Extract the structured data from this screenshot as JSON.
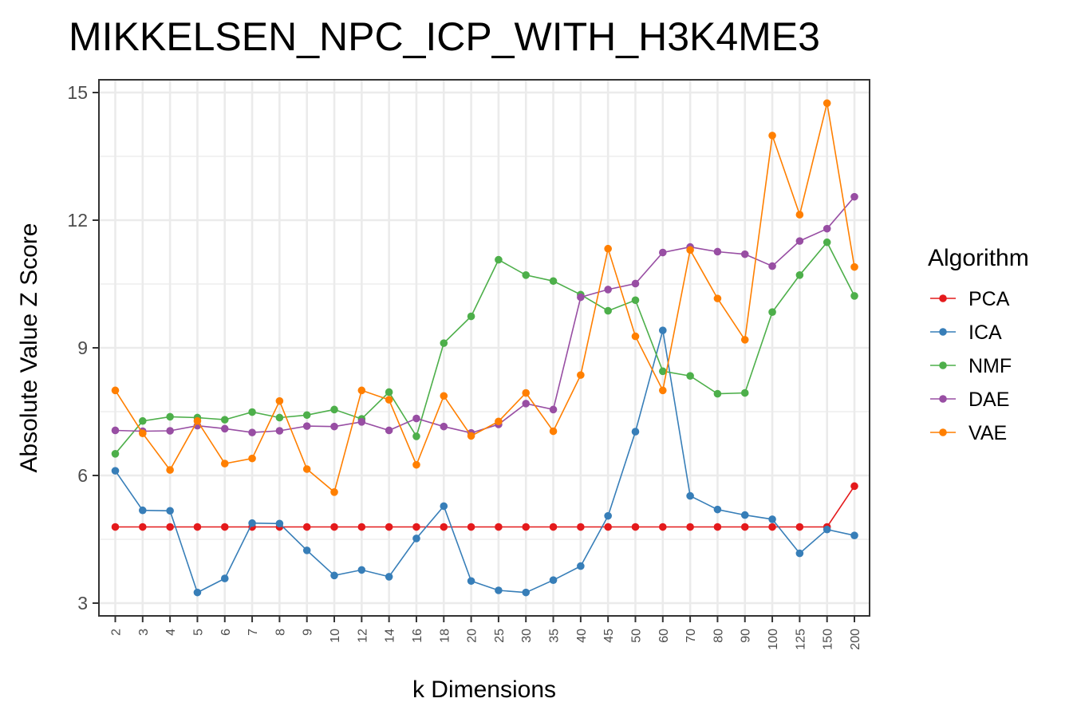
{
  "chart_data": {
    "type": "line",
    "title": "MIKKELSEN_NPC_ICP_WITH_H3K4ME3",
    "xlabel": "k Dimensions",
    "ylabel": "Absolute Value Z Score",
    "categories": [
      "2",
      "3",
      "4",
      "5",
      "6",
      "7",
      "8",
      "9",
      "10",
      "12",
      "14",
      "16",
      "18",
      "20",
      "25",
      "30",
      "35",
      "40",
      "45",
      "50",
      "60",
      "70",
      "80",
      "90",
      "100",
      "125",
      "150",
      "200"
    ],
    "ylim": [
      2.7,
      15.3
    ],
    "yticks": [
      "3",
      "6",
      "9",
      "12",
      "15"
    ],
    "grid": true,
    "legend": {
      "title": "Algorithm",
      "placement": "right"
    },
    "series": [
      {
        "name": "PCA",
        "color": "#e41a1c",
        "values": [
          4.79,
          4.79,
          4.79,
          4.79,
          4.79,
          4.79,
          4.79,
          4.79,
          4.79,
          4.79,
          4.79,
          4.79,
          4.79,
          4.79,
          4.79,
          4.79,
          4.79,
          4.79,
          4.79,
          4.79,
          4.79,
          4.79,
          4.79,
          4.79,
          4.79,
          4.79,
          4.79,
          5.75
        ]
      },
      {
        "name": "ICA",
        "color": "#377eb8",
        "values": [
          6.11,
          5.18,
          5.17,
          3.25,
          3.58,
          4.88,
          4.87,
          4.24,
          3.65,
          3.78,
          3.62,
          4.52,
          5.28,
          3.52,
          3.3,
          3.25,
          3.54,
          3.87,
          5.05,
          7.03,
          9.41,
          5.52,
          5.2,
          5.07,
          4.97,
          4.17,
          4.73,
          4.59
        ]
      },
      {
        "name": "NMF",
        "color": "#4daf4a",
        "values": [
          6.51,
          7.28,
          7.38,
          7.36,
          7.31,
          7.49,
          7.36,
          7.42,
          7.55,
          7.33,
          7.96,
          6.92,
          9.11,
          9.74,
          11.07,
          10.71,
          10.57,
          10.25,
          9.87,
          10.12,
          8.45,
          8.34,
          7.92,
          7.94,
          9.84,
          10.71,
          11.48,
          10.22
        ]
      },
      {
        "name": "DAE",
        "color": "#984ea3",
        "values": [
          7.06,
          7.04,
          7.05,
          7.17,
          7.1,
          7.01,
          7.05,
          7.16,
          7.15,
          7.26,
          7.06,
          7.34,
          7.15,
          7.0,
          7.2,
          7.69,
          7.55,
          10.19,
          10.37,
          10.51,
          11.24,
          11.37,
          11.26,
          11.2,
          10.92,
          11.51,
          11.8,
          12.55
        ]
      },
      {
        "name": "VAE",
        "color": "#ff7f00",
        "values": [
          8.0,
          6.99,
          6.13,
          7.28,
          6.28,
          6.4,
          7.75,
          6.15,
          5.61,
          8.0,
          7.78,
          6.25,
          7.87,
          6.93,
          7.27,
          7.94,
          7.04,
          8.36,
          11.33,
          9.27,
          8.0,
          11.3,
          10.16,
          9.19,
          13.99,
          12.13,
          14.75,
          10.9
        ]
      }
    ]
  }
}
